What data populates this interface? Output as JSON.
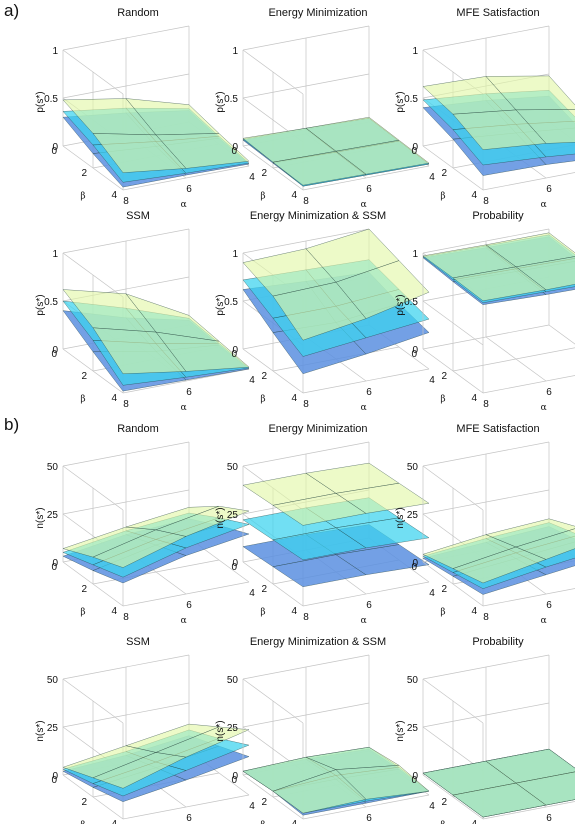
{
  "sections": [
    {
      "label": "a)",
      "zlabel": "p(s*)",
      "z_ticks": [
        "0",
        "0.5",
        "1"
      ],
      "zmax": 1
    },
    {
      "label": "b)",
      "zlabel": "n(s*)",
      "z_ticks": [
        "0",
        "25",
        "50"
      ],
      "zmax": 50
    }
  ],
  "axis_text": {
    "beta": "β",
    "alpha": "α",
    "beta_ticks": [
      "0",
      "2",
      "4"
    ],
    "alpha_ticks": [
      "8",
      "6",
      "4"
    ]
  },
  "colors": {
    "bottom": "#5b8fe0",
    "middle": "#3ad2ef",
    "top": "#e2f7a6",
    "grid": "#c4c4c4",
    "mesh": "#1c3d3a"
  },
  "chart_data": [
    {
      "type": "surface",
      "title": "Random",
      "section": 0,
      "x_label": "β",
      "y_label": "α",
      "z_label": "p(s*)",
      "zlim": [
        0,
        1
      ],
      "series": [
        {
          "name": "",
          "values": [
            [
              0.3,
              0.22,
              0.12
            ],
            [
              0.15,
              0.1,
              0.06
            ],
            [
              0.03,
              0.03,
              0.02
            ]
          ]
        },
        {
          "name": "",
          "values": [
            [
              0.36,
              0.27,
              0.14
            ],
            [
              0.24,
              0.15,
              0.08
            ],
            [
              0.08,
              0.05,
              0.03
            ]
          ]
        },
        {
          "name": "",
          "values": [
            [
              0.48,
              0.37,
              0.18
            ],
            [
              0.36,
              0.22,
              0.11
            ],
            [
              0.18,
              0.1,
              0.05
            ]
          ]
        }
      ]
    },
    {
      "type": "surface",
      "title": "Energy Minimization",
      "section": 0,
      "x_label": "β",
      "y_label": "α",
      "z_label": "p(s*)",
      "zlim": [
        0,
        1
      ],
      "series": [
        {
          "name": "",
          "values": [
            [
              0.06,
              0.05,
              0.04
            ],
            [
              0.05,
              0.04,
              0.03
            ],
            [
              0.04,
              0.03,
              0.02
            ]
          ]
        },
        {
          "name": "",
          "values": [
            [
              0.07,
              0.06,
              0.04
            ],
            [
              0.06,
              0.04,
              0.03
            ],
            [
              0.04,
              0.03,
              0.02
            ]
          ]
        },
        {
          "name": "",
          "values": [
            [
              0.08,
              0.06,
              0.05
            ],
            [
              0.06,
              0.05,
              0.04
            ],
            [
              0.05,
              0.04,
              0.03
            ]
          ]
        }
      ]
    },
    {
      "type": "surface",
      "title": "MFE Satisfaction",
      "section": 0,
      "x_label": "β",
      "y_label": "α",
      "z_label": "p(s*)",
      "zlim": [
        0,
        1
      ],
      "series": [
        {
          "name": "",
          "values": [
            [
              0.4,
              0.35,
              0.27
            ],
            [
              0.3,
              0.24,
              0.17
            ],
            [
              0.15,
              0.14,
              0.1
            ]
          ]
        },
        {
          "name": "",
          "values": [
            [
              0.48,
              0.42,
              0.33
            ],
            [
              0.4,
              0.33,
              0.24
            ],
            [
              0.26,
              0.22,
              0.16
            ]
          ]
        },
        {
          "name": "",
          "values": [
            [
              0.62,
              0.6,
              0.48
            ],
            [
              0.56,
              0.48,
              0.36
            ],
            [
              0.42,
              0.36,
              0.26
            ]
          ]
        }
      ]
    },
    {
      "type": "surface",
      "title": "SSM",
      "section": 0,
      "x_label": "β",
      "y_label": "α",
      "z_label": "p(s*)",
      "zlim": [
        0,
        1
      ],
      "series": [
        {
          "name": "",
          "values": [
            [
              0.4,
              0.2,
              0.05
            ],
            [
              0.2,
              0.08,
              0.02
            ],
            [
              0.02,
              0.01,
              0.0
            ]
          ]
        },
        {
          "name": "",
          "values": [
            [
              0.5,
              0.3,
              0.07
            ],
            [
              0.32,
              0.16,
              0.04
            ],
            [
              0.08,
              0.04,
              0.01
            ]
          ]
        },
        {
          "name": "",
          "values": [
            [
              0.62,
              0.45,
              0.1
            ],
            [
              0.45,
              0.28,
              0.06
            ],
            [
              0.2,
              0.1,
              0.02
            ]
          ]
        }
      ]
    },
    {
      "type": "surface",
      "title": "Energy Minimization & SSM",
      "section": 0,
      "x_label": "β",
      "y_label": "α",
      "z_label": "p(s*)",
      "zlim": [
        0,
        1
      ],
      "series": [
        {
          "name": "",
          "values": [
            [
              0.62,
              0.58,
              0.55
            ],
            [
              0.4,
              0.38,
              0.45
            ],
            [
              0.2,
              0.28,
              0.38
            ]
          ]
        },
        {
          "name": "",
          "values": [
            [
              0.72,
              0.7,
              0.68
            ],
            [
              0.55,
              0.55,
              0.6
            ],
            [
              0.38,
              0.45,
              0.52
            ]
          ]
        },
        {
          "name": "",
          "values": [
            [
              0.9,
              0.92,
              1.0
            ],
            [
              0.78,
              0.8,
              0.9
            ],
            [
              0.55,
              0.65,
              0.8
            ]
          ]
        }
      ]
    },
    {
      "type": "surface",
      "title": "Probability",
      "section": 0,
      "x_label": "β",
      "y_label": "α",
      "z_label": "p(s*)",
      "zlim": [
        0,
        1
      ],
      "series": [
        {
          "name": "",
          "values": [
            [
              0.95,
              0.93,
              0.92
            ],
            [
              0.93,
              0.91,
              0.9
            ],
            [
              0.92,
              0.9,
              0.89
            ]
          ]
        },
        {
          "name": "",
          "values": [
            [
              0.96,
              0.95,
              0.94
            ],
            [
              0.95,
              0.94,
              0.93
            ],
            [
              0.94,
              0.93,
              0.92
            ]
          ]
        },
        {
          "name": "",
          "values": [
            [
              0.97,
              0.96,
              0.96
            ],
            [
              0.97,
              0.96,
              0.95
            ],
            [
              0.96,
              0.95,
              0.95
            ]
          ]
        }
      ]
    },
    {
      "type": "surface",
      "title": "Random",
      "section": 1,
      "x_label": "β",
      "y_label": "α",
      "z_label": "n(s*)",
      "zlim": [
        0,
        50
      ],
      "series": [
        {
          "name": "",
          "values": [
            [
              3,
              8,
              10
            ],
            [
              7,
              14,
              18
            ],
            [
              12,
              20,
              25
            ]
          ]
        },
        {
          "name": "",
          "values": [
            [
              5,
              10,
              13
            ],
            [
              10,
              17,
              22
            ],
            [
              15,
              24,
              30
            ]
          ]
        },
        {
          "name": "",
          "values": [
            [
              7,
              12,
              16
            ],
            [
              14,
              22,
              28
            ],
            [
              20,
              30,
              37
            ]
          ]
        }
      ]
    },
    {
      "type": "surface",
      "title": "Energy Minimization",
      "section": 1,
      "x_label": "β",
      "y_label": "α",
      "z_label": "n(s*)",
      "zlim": [
        0,
        50
      ],
      "series": [
        {
          "name": "",
          "values": [
            [
              8,
              8,
              7
            ],
            [
              9,
              9,
              8
            ],
            [
              10,
              10,
              9
            ]
          ]
        },
        {
          "name": "",
          "values": [
            [
              22,
              22,
              21
            ],
            [
              23,
              23,
              22
            ],
            [
              24,
              24,
              23
            ]
          ]
        },
        {
          "name": "",
          "values": [
            [
              40,
              40,
              39
            ],
            [
              41,
              41,
              40
            ],
            [
              42,
              42,
              41
            ]
          ]
        }
      ]
    },
    {
      "type": "surface",
      "title": "MFE Satisfaction",
      "section": 1,
      "x_label": "β",
      "y_label": "α",
      "z_label": "n(s*)",
      "zlim": [
        0,
        50
      ],
      "series": [
        {
          "name": "",
          "values": [
            [
              2,
              4,
              6
            ],
            [
              4,
              7,
              10
            ],
            [
              6,
              10,
              14
            ]
          ]
        },
        {
          "name": "",
          "values": [
            [
              3,
              6,
              8
            ],
            [
              6,
              10,
              13
            ],
            [
              9,
              14,
              18
            ]
          ]
        },
        {
          "name": "",
          "values": [
            [
              4,
              8,
              10
            ],
            [
              8,
              13,
              17
            ],
            [
              12,
              18,
              24
            ]
          ]
        }
      ]
    },
    {
      "type": "surface",
      "title": "SSM",
      "section": 1,
      "x_label": "β",
      "y_label": "α",
      "z_label": "n(s*)",
      "zlim": [
        0,
        50
      ],
      "series": [
        {
          "name": "",
          "values": [
            [
              2,
              4,
              8
            ],
            [
              5,
              9,
              14
            ],
            [
              9,
              14,
              20
            ]
          ]
        },
        {
          "name": "",
          "values": [
            [
              3,
              6,
              11
            ],
            [
              7,
              12,
              18
            ],
            [
              12,
              19,
              26
            ]
          ]
        },
        {
          "name": "",
          "values": [
            [
              4,
              9,
              14
            ],
            [
              10,
              17,
              24
            ],
            [
              16,
              26,
              34
            ]
          ]
        }
      ]
    },
    {
      "type": "surface",
      "title": "Energy Minimization & SSM",
      "section": 1,
      "x_label": "β",
      "y_label": "α",
      "z_label": "n(s*)",
      "zlim": [
        0,
        50
      ],
      "series": [
        {
          "name": "",
          "values": [
            [
              2,
              2,
              1
            ],
            [
              3,
              3,
              2
            ],
            [
              2,
              2,
              2
            ]
          ]
        },
        {
          "name": "",
          "values": [
            [
              2,
              3,
              2
            ],
            [
              3,
              5,
              3
            ],
            [
              3,
              3,
              2
            ]
          ]
        },
        {
          "name": "",
          "values": [
            [
              2,
              3,
              2
            ],
            [
              3,
              8,
              4
            ],
            [
              3,
              4,
              2
            ]
          ]
        }
      ]
    },
    {
      "type": "surface",
      "title": "Probability",
      "section": 1,
      "x_label": "β",
      "y_label": "α",
      "z_label": "n(s*)",
      "zlim": [
        0,
        50
      ],
      "series": [
        {
          "name": "",
          "values": [
            [
              1,
              1,
              1
            ],
            [
              1,
              1,
              1
            ],
            [
              1,
              1,
              1
            ]
          ]
        },
        {
          "name": "",
          "values": [
            [
              1,
              1,
              1
            ],
            [
              1,
              1,
              1
            ],
            [
              1,
              1,
              1
            ]
          ]
        },
        {
          "name": "",
          "values": [
            [
              1,
              1,
              1
            ],
            [
              1,
              1,
              1
            ],
            [
              1,
              1,
              1
            ]
          ]
        }
      ]
    }
  ]
}
